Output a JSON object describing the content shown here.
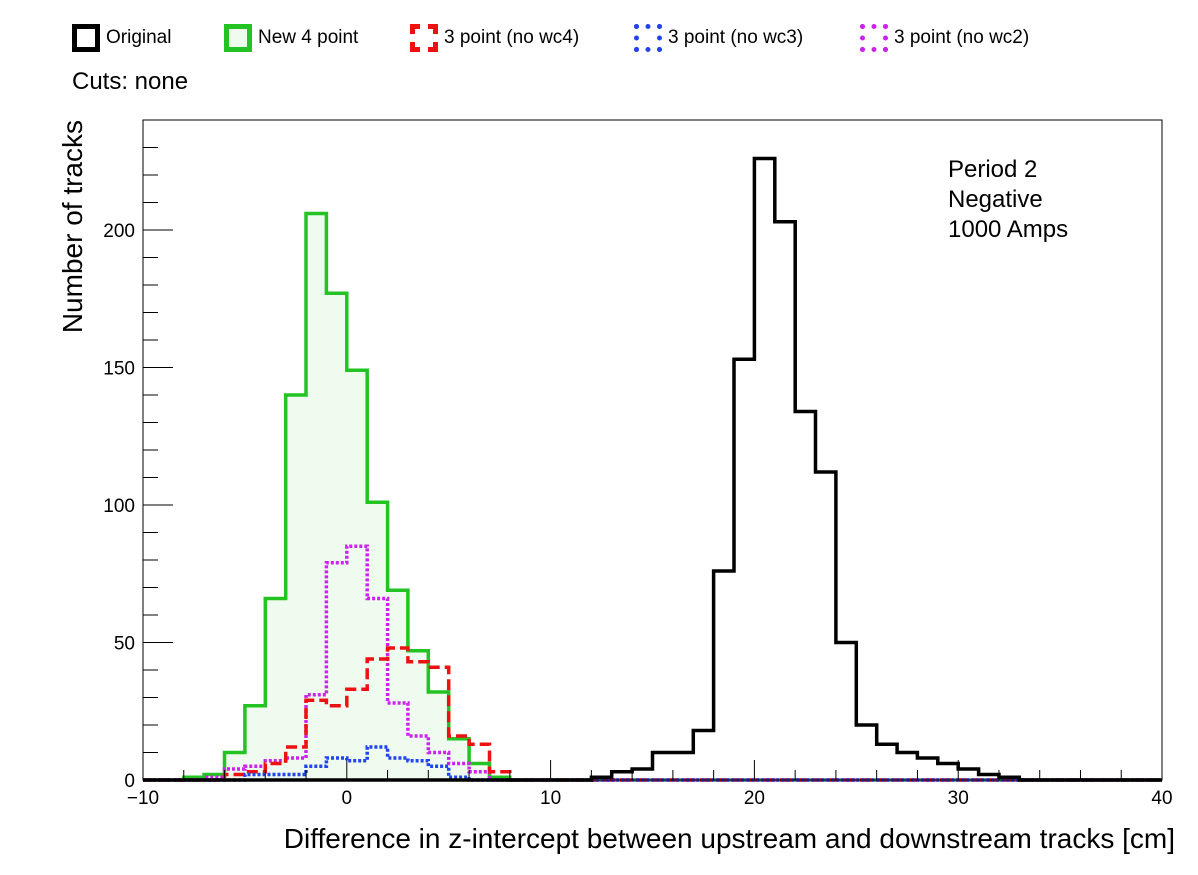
{
  "legend": {
    "items": [
      {
        "label": "Original",
        "color": "#000000",
        "style": "solid",
        "fill": ""
      },
      {
        "label": "New 4 point",
        "color": "#22c322",
        "style": "solid",
        "fill": "#eefbee"
      },
      {
        "label": "3 point (no wc4)",
        "color": "#ee1111",
        "style": "dashed",
        "fill": ""
      },
      {
        "label": "3 point (no wc3)",
        "color": "#2244ee",
        "style": "dotted",
        "fill": ""
      },
      {
        "label": "3 point (no wc2)",
        "color": "#cc22ee",
        "style": "dotted",
        "fill": ""
      }
    ]
  },
  "cuts_label": "Cuts: none",
  "annotation": [
    "Period 2",
    "Negative",
    "1000 Amps"
  ],
  "chart_data": {
    "type": "bar",
    "histogram": true,
    "bin_width": 1,
    "xlabel": "Difference in z-intercept between upstream and downstream tracks [cm]",
    "ylabel": "Number of tracks",
    "xlim": [
      -10,
      40
    ],
    "ylim": [
      0,
      240
    ],
    "xticks": [
      -10,
      0,
      10,
      20,
      30,
      40
    ],
    "xtick_labels": [
      "−10",
      "0",
      "10",
      "20",
      "30",
      "40"
    ],
    "yticks": [
      0,
      50,
      100,
      150,
      200
    ],
    "grid": false,
    "legend_position": "top",
    "series": [
      {
        "name": "Original",
        "x_start": 12,
        "values": [
          1,
          3,
          4,
          10,
          10,
          18,
          76,
          153,
          226,
          203,
          134,
          112,
          50,
          20,
          13,
          10,
          8,
          6,
          4,
          2,
          1
        ]
      },
      {
        "name": "New 4 point",
        "x_start": -8,
        "values": [
          1,
          2,
          10,
          27,
          66,
          140,
          206,
          177,
          149,
          101,
          69,
          47,
          32,
          15,
          6,
          1
        ]
      },
      {
        "name": "3 point (no wc4)",
        "x_start": -6,
        "values": [
          2,
          3,
          6,
          12,
          29,
          27,
          33,
          44,
          48,
          43,
          41,
          16,
          13,
          3
        ]
      },
      {
        "name": "3 point (no wc3)",
        "x_start": -5,
        "values": [
          2,
          2,
          2,
          5,
          8,
          7,
          12,
          8,
          7,
          5,
          1
        ]
      },
      {
        "name": "3 point (no wc2)",
        "x_start": -7,
        "values": [
          1,
          4,
          5,
          7,
          8,
          31,
          79,
          85,
          66,
          28,
          16,
          10,
          6,
          3
        ]
      }
    ]
  }
}
